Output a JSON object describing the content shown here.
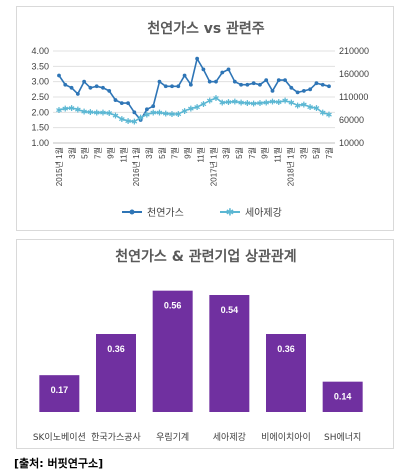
{
  "colors": {
    "gas": "#2e75b6",
    "sea": "#5bb7d3",
    "bar": "#7030a0",
    "grid": "#e0e0e0"
  },
  "source_text": "[출처: 버핏연구소]",
  "chart_data": [
    {
      "type": "line",
      "title": "천연가스 vs 관련주",
      "y_left": {
        "ylim": [
          1.0,
          4.0
        ],
        "ticks": [
          "4.00",
          "3.50",
          "3.00",
          "2.50",
          "2.00",
          "1.50",
          "1.00"
        ]
      },
      "y_right": {
        "ylim": [
          10000,
          210000
        ],
        "ticks": [
          "210000",
          "160000",
          "110000",
          "60000",
          "10000"
        ]
      },
      "x_ticks": [
        "2015년 1월",
        "3월",
        "5월",
        "7월",
        "9월",
        "11월",
        "2016년 1월",
        "3월",
        "5월",
        "7월",
        "9월",
        "11월",
        "2017년 1월",
        "3월",
        "5월",
        "7월",
        "9월",
        "11월",
        "2018년 1월",
        "3월",
        "5월",
        "7월"
      ],
      "legend_position": "bottom",
      "series": [
        {
          "name": "천연가스",
          "axis": "left",
          "marker": "dot",
          "values": [
            3.2,
            2.9,
            2.8,
            2.6,
            3.0,
            2.8,
            2.85,
            2.8,
            2.7,
            2.4,
            2.3,
            2.3,
            2.0,
            1.75,
            2.1,
            2.2,
            3.0,
            2.85,
            2.85,
            2.85,
            3.2,
            2.9,
            3.75,
            3.4,
            3.0,
            3.0,
            3.3,
            3.4,
            3.0,
            2.9,
            2.9,
            2.95,
            2.9,
            3.05,
            2.7,
            3.05,
            3.05,
            2.8,
            2.65,
            2.7,
            2.75,
            2.95,
            2.9,
            2.85
          ]
        },
        {
          "name": "세아제강",
          "axis": "right",
          "marker": "star",
          "values": [
            82000,
            85000,
            86000,
            83000,
            78000,
            77000,
            76000,
            76000,
            75000,
            70000,
            62000,
            58000,
            57000,
            65000,
            72000,
            76000,
            76000,
            74000,
            73000,
            73000,
            80000,
            85000,
            88000,
            95000,
            102000,
            108000,
            98000,
            99000,
            100000,
            98000,
            97000,
            96000,
            97000,
            98000,
            100000,
            99000,
            102000,
            98000,
            92000,
            94000,
            88000,
            86000,
            76000,
            72000
          ]
        }
      ]
    },
    {
      "type": "bar",
      "title": "천연가스 & 관련기업 상관관계",
      "categories": [
        "SK이노베이션",
        "한국가스공사",
        "우림기계",
        "세아제강",
        "비에이치아이",
        "SH에너지"
      ],
      "values": [
        0.17,
        0.36,
        0.56,
        0.54,
        0.36,
        0.14
      ],
      "value_labels": [
        "0.17",
        "0.36",
        "0.56",
        "0.54",
        "0.36",
        "0.14"
      ],
      "ylim": [
        0,
        0.6
      ]
    }
  ]
}
